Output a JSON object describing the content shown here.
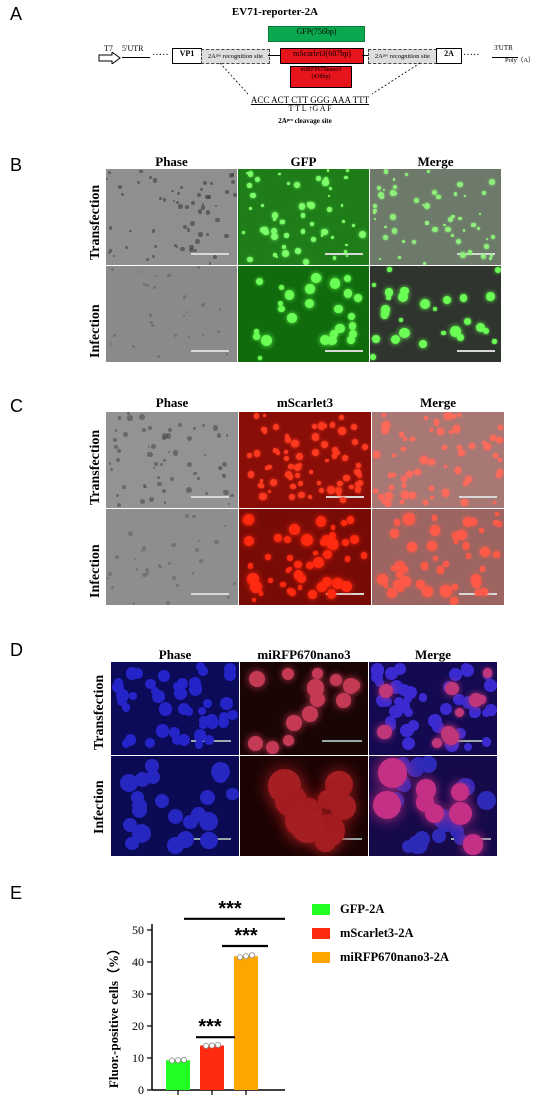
{
  "panels": {
    "A": "A",
    "B": "B",
    "C": "C",
    "D": "D",
    "E": "E"
  },
  "panel_a": {
    "title": "EV71-reporter-2A",
    "t7": "T7",
    "utr5": "5'UTR",
    "vp1": "VP1",
    "site_left": "2Aᵖʳᵒ recognition site",
    "site_right": "2Aᵖʳᵒ recognition site",
    "gfp": "GFP(756bp)",
    "mscarlet": "mScarlet3(687bp)",
    "mirfp_line1": "miRFP670nano3",
    "mirfp_line2": "(438bp)",
    "twoA": "2A",
    "utr3": "3'UTR",
    "polyA": "Poly（A）",
    "seq_top": "ACC ACT CTT GGG AAA TTT",
    "seq_bottom": "T   T   L  ↑G   A   F",
    "cleavage": "2Aᵖʳᵒ cleavage site"
  },
  "panel_b": {
    "cols": [
      "Phase",
      "GFP",
      "Merge"
    ],
    "rows": [
      "Transfection",
      "Infection"
    ]
  },
  "panel_c": {
    "cols": [
      "Phase",
      "mScarlet3",
      "Merge"
    ],
    "rows": [
      "Transfection",
      "Infection"
    ]
  },
  "panel_d": {
    "cols": [
      "Phase",
      "miRFP670nano3",
      "Merge"
    ],
    "rows": [
      "Transfection",
      "Infection"
    ]
  },
  "colors": {
    "gfp": "#22ff22",
    "mscarlet": "#ff2a10",
    "mirfp": "#ffa500",
    "box_green": "#0aa84f",
    "box_red": "#e8141b"
  },
  "chart_data": {
    "type": "bar",
    "categories": [
      "GFP-2A",
      "mScarlet3-2A",
      "miRFP670nano3-2A"
    ],
    "values": [
      9.3,
      13.9,
      41.8
    ],
    "points": [
      [
        9.2,
        9.3,
        9.4
      ],
      [
        13.8,
        13.9,
        14.1
      ],
      [
        41.5,
        41.8,
        42.1
      ]
    ],
    "ylabel": "Fluor.-positive cells（%）",
    "ylim": [
      0,
      50
    ],
    "yticks": [
      "0",
      "10",
      "20",
      "30",
      "40",
      "50"
    ],
    "legend": [
      "GFP-2A",
      "mScarlet3-2A",
      "miRFP670nano3-2A"
    ],
    "legend_position": "right",
    "significance": [
      "***",
      "***",
      "***"
    ]
  }
}
